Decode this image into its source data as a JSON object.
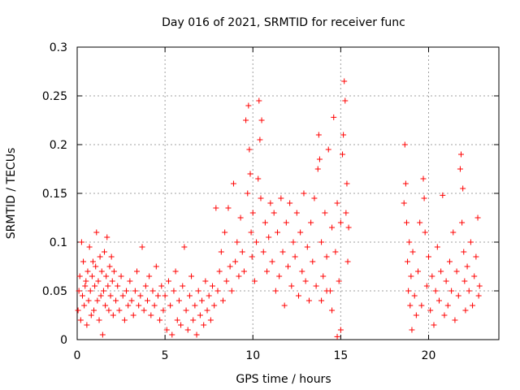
{
  "chart_data": {
    "type": "scatter",
    "title": "Day 016 of 2021, SRMTID for receiver func",
    "xlabel": "GPS time / hours",
    "ylabel": "SRMTID / TECUs",
    "xlim": [
      0,
      24
    ],
    "ylim": [
      0,
      0.3
    ],
    "x_ticks": [
      0,
      5,
      10,
      15,
      20
    ],
    "x_tick_labels": [
      "0",
      "5",
      "10",
      "15",
      "20"
    ],
    "y_ticks": [
      0,
      0.05,
      0.1,
      0.15,
      0.2,
      0.25,
      0.3
    ],
    "y_tick_labels": [
      "0",
      "0.05",
      "0.1",
      "0.15",
      "0.2",
      "0.25",
      "0.3"
    ],
    "grid": true,
    "marker": "plus",
    "color": "#ff0000",
    "points": [
      [
        0.05,
        0.03
      ],
      [
        0.1,
        0.05
      ],
      [
        0.15,
        0.065
      ],
      [
        0.2,
        0.02
      ],
      [
        0.25,
        0.1
      ],
      [
        0.3,
        0.045
      ],
      [
        0.35,
        0.08
      ],
      [
        0.4,
        0.035
      ],
      [
        0.45,
        0.055
      ],
      [
        0.5,
        0.06
      ],
      [
        0.55,
        0.015
      ],
      [
        0.6,
        0.07
      ],
      [
        0.65,
        0.04
      ],
      [
        0.7,
        0.095
      ],
      [
        0.75,
        0.05
      ],
      [
        0.8,
        0.025
      ],
      [
        0.85,
        0.065
      ],
      [
        0.9,
        0.08
      ],
      [
        0.95,
        0.03
      ],
      [
        1.0,
        0.055
      ],
      [
        1.05,
        0.075
      ],
      [
        1.1,
        0.11
      ],
      [
        1.15,
        0.04
      ],
      [
        1.2,
        0.06
      ],
      [
        1.25,
        0.02
      ],
      [
        1.3,
        0.085
      ],
      [
        1.35,
        0.045
      ],
      [
        1.4,
        0.07
      ],
      [
        1.45,
        0.005
      ],
      [
        1.5,
        0.05
      ],
      [
        1.55,
        0.09
      ],
      [
        1.6,
        0.035
      ],
      [
        1.65,
        0.065
      ],
      [
        1.7,
        0.105
      ],
      [
        1.75,
        0.055
      ],
      [
        1.8,
        0.03
      ],
      [
        1.85,
        0.075
      ],
      [
        1.9,
        0.045
      ],
      [
        1.95,
        0.085
      ],
      [
        2.0,
        0.06
      ],
      [
        2.05,
        0.025
      ],
      [
        2.1,
        0.07
      ],
      [
        2.2,
        0.04
      ],
      [
        2.3,
        0.055
      ],
      [
        2.4,
        0.03
      ],
      [
        2.5,
        0.065
      ],
      [
        2.6,
        0.045
      ],
      [
        2.7,
        0.02
      ],
      [
        2.8,
        0.05
      ],
      [
        2.9,
        0.035
      ],
      [
        3.0,
        0.06
      ],
      [
        3.1,
        0.04
      ],
      [
        3.2,
        0.025
      ],
      [
        3.3,
        0.05
      ],
      [
        3.4,
        0.07
      ],
      [
        3.5,
        0.035
      ],
      [
        3.6,
        0.045
      ],
      [
        3.7,
        0.095
      ],
      [
        3.8,
        0.03
      ],
      [
        3.9,
        0.055
      ],
      [
        4.0,
        0.04
      ],
      [
        4.1,
        0.065
      ],
      [
        4.2,
        0.025
      ],
      [
        4.3,
        0.05
      ],
      [
        4.4,
        0.035
      ],
      [
        4.5,
        0.075
      ],
      [
        4.6,
        0.045
      ],
      [
        4.7,
        0.02
      ],
      [
        4.8,
        0.055
      ],
      [
        4.9,
        0.03
      ],
      [
        5.0,
        0.045
      ],
      [
        5.1,
        0.01
      ],
      [
        5.2,
        0.06
      ],
      [
        5.3,
        0.035
      ],
      [
        5.4,
        0.005
      ],
      [
        5.5,
        0.05
      ],
      [
        5.6,
        0.07
      ],
      [
        5.7,
        0.02
      ],
      [
        5.8,
        0.04
      ],
      [
        5.9,
        0.015
      ],
      [
        6.0,
        0.055
      ],
      [
        6.1,
        0.095
      ],
      [
        6.2,
        0.03
      ],
      [
        6.3,
        0.01
      ],
      [
        6.4,
        0.045
      ],
      [
        6.5,
        0.065
      ],
      [
        6.6,
        0.02
      ],
      [
        6.7,
        0.035
      ],
      [
        6.8,
        0.005
      ],
      [
        6.9,
        0.05
      ],
      [
        7.0,
        0.025
      ],
      [
        7.1,
        0.04
      ],
      [
        7.2,
        0.015
      ],
      [
        7.3,
        0.06
      ],
      [
        7.4,
        0.03
      ],
      [
        7.5,
        0.045
      ],
      [
        7.6,
        0.02
      ],
      [
        7.7,
        0.055
      ],
      [
        7.8,
        0.035
      ],
      [
        7.9,
        0.135
      ],
      [
        8.0,
        0.05
      ],
      [
        8.1,
        0.07
      ],
      [
        8.2,
        0.09
      ],
      [
        8.3,
        0.04
      ],
      [
        8.4,
        0.11
      ],
      [
        8.5,
        0.06
      ],
      [
        8.6,
        0.135
      ],
      [
        8.7,
        0.075
      ],
      [
        8.8,
        0.05
      ],
      [
        8.9,
        0.16
      ],
      [
        9.0,
        0.08
      ],
      [
        9.1,
        0.1
      ],
      [
        9.2,
        0.065
      ],
      [
        9.3,
        0.125
      ],
      [
        9.4,
        0.09
      ],
      [
        9.5,
        0.07
      ],
      [
        9.6,
        0.225
      ],
      [
        9.7,
        0.15
      ],
      [
        9.75,
        0.24
      ],
      [
        9.8,
        0.195
      ],
      [
        9.85,
        0.17
      ],
      [
        9.9,
        0.11
      ],
      [
        9.95,
        0.085
      ],
      [
        10.0,
        0.13
      ],
      [
        10.1,
        0.06
      ],
      [
        10.2,
        0.1
      ],
      [
        10.3,
        0.165
      ],
      [
        10.35,
        0.245
      ],
      [
        10.4,
        0.205
      ],
      [
        10.45,
        0.145
      ],
      [
        10.5,
        0.225
      ],
      [
        10.6,
        0.09
      ],
      [
        10.7,
        0.12
      ],
      [
        10.8,
        0.07
      ],
      [
        10.9,
        0.105
      ],
      [
        11.0,
        0.14
      ],
      [
        11.1,
        0.08
      ],
      [
        11.2,
        0.13
      ],
      [
        11.3,
        0.05
      ],
      [
        11.4,
        0.11
      ],
      [
        11.5,
        0.065
      ],
      [
        11.6,
        0.145
      ],
      [
        11.7,
        0.09
      ],
      [
        11.8,
        0.035
      ],
      [
        11.9,
        0.12
      ],
      [
        12.0,
        0.075
      ],
      [
        12.1,
        0.14
      ],
      [
        12.2,
        0.055
      ],
      [
        12.3,
        0.1
      ],
      [
        12.4,
        0.085
      ],
      [
        12.5,
        0.13
      ],
      [
        12.6,
        0.045
      ],
      [
        12.7,
        0.11
      ],
      [
        12.8,
        0.07
      ],
      [
        12.9,
        0.15
      ],
      [
        13.0,
        0.06
      ],
      [
        13.1,
        0.095
      ],
      [
        13.2,
        0.04
      ],
      [
        13.3,
        0.12
      ],
      [
        13.4,
        0.08
      ],
      [
        13.5,
        0.145
      ],
      [
        13.6,
        0.055
      ],
      [
        13.7,
        0.175
      ],
      [
        13.75,
        0.21
      ],
      [
        13.8,
        0.185
      ],
      [
        13.9,
        0.1
      ],
      [
        14.0,
        0.065
      ],
      [
        14.1,
        0.13
      ],
      [
        14.2,
        0.085
      ],
      [
        14.3,
        0.195
      ],
      [
        14.4,
        0.05
      ],
      [
        14.5,
        0.115
      ],
      [
        14.6,
        0.228
      ],
      [
        14.7,
        0.09
      ],
      [
        14.8,
        0.14
      ],
      [
        14.9,
        0.06
      ],
      [
        15.0,
        0.12
      ],
      [
        15.1,
        0.19
      ],
      [
        15.15,
        0.21
      ],
      [
        15.2,
        0.265
      ],
      [
        15.25,
        0.245
      ],
      [
        15.3,
        0.13
      ],
      [
        15.35,
        0.16
      ],
      [
        15.4,
        0.08
      ],
      [
        15.45,
        0.115
      ],
      [
        15.0,
        0.01
      ],
      [
        14.8,
        0.003
      ],
      [
        14.5,
        0.03
      ],
      [
        14.2,
        0.05
      ],
      [
        13.9,
        0.04
      ],
      [
        18.6,
        0.14
      ],
      [
        18.65,
        0.2
      ],
      [
        18.7,
        0.16
      ],
      [
        18.75,
        0.12
      ],
      [
        18.8,
        0.08
      ],
      [
        18.85,
        0.05
      ],
      [
        18.9,
        0.1
      ],
      [
        18.95,
        0.035
      ],
      [
        19.0,
        0.065
      ],
      [
        19.05,
        0.01
      ],
      [
        19.1,
        0.09
      ],
      [
        19.2,
        0.045
      ],
      [
        19.3,
        0.025
      ],
      [
        19.4,
        0.07
      ],
      [
        19.5,
        0.12
      ],
      [
        19.6,
        0.035
      ],
      [
        19.7,
        0.165
      ],
      [
        19.75,
        0.145
      ],
      [
        19.8,
        0.11
      ],
      [
        19.9,
        0.055
      ],
      [
        20.0,
        0.085
      ],
      [
        20.1,
        0.03
      ],
      [
        20.2,
        0.065
      ],
      [
        20.3,
        0.015
      ],
      [
        20.4,
        0.05
      ],
      [
        20.5,
        0.095
      ],
      [
        20.6,
        0.04
      ],
      [
        20.7,
        0.07
      ],
      [
        20.8,
        0.148
      ],
      [
        20.9,
        0.025
      ],
      [
        21.0,
        0.06
      ],
      [
        21.1,
        0.035
      ],
      [
        21.2,
        0.08
      ],
      [
        21.3,
        0.05
      ],
      [
        21.4,
        0.11
      ],
      [
        21.5,
        0.02
      ],
      [
        21.6,
        0.07
      ],
      [
        21.7,
        0.045
      ],
      [
        21.8,
        0.175
      ],
      [
        21.85,
        0.19
      ],
      [
        21.9,
        0.12
      ],
      [
        21.95,
        0.155
      ],
      [
        22.0,
        0.09
      ],
      [
        22.05,
        0.06
      ],
      [
        22.1,
        0.03
      ],
      [
        22.2,
        0.075
      ],
      [
        22.3,
        0.05
      ],
      [
        22.4,
        0.1
      ],
      [
        22.5,
        0.035
      ],
      [
        22.6,
        0.065
      ],
      [
        22.7,
        0.085
      ],
      [
        22.8,
        0.125
      ],
      [
        22.85,
        0.045
      ],
      [
        22.9,
        0.055
      ]
    ]
  }
}
